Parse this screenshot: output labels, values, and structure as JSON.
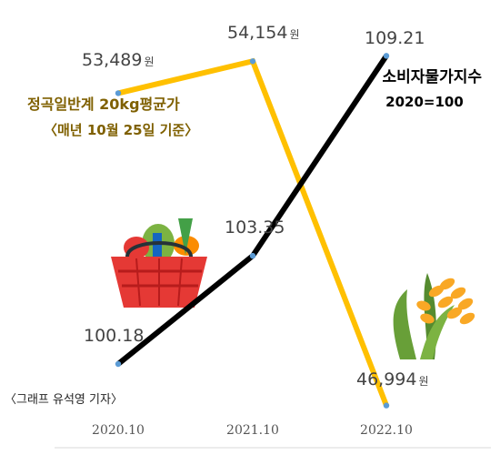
{
  "chart_data": {
    "type": "line",
    "categories": [
      "2020.10",
      "2021.10",
      "2022.10"
    ],
    "series": [
      {
        "name": "정곡일반계 20kg평균가",
        "values": [
          53489,
          54154,
          46994
        ],
        "labels": [
          "53,489",
          "54,154",
          "46,994"
        ],
        "unit": "원",
        "color": "#FFC000"
      },
      {
        "name": "소비자물가지수",
        "values": [
          100.18,
          103.35,
          109.21
        ],
        "labels": [
          "100.18",
          "103.35",
          "109.21"
        ],
        "color": "#000000"
      }
    ],
    "legend": {
      "rice_title": "정곡일반계 20kg평균가",
      "rice_note": "〈매년 10월 25일 기준〉",
      "cpi_title": "소비자물가지수",
      "cpi_note": "2020=100"
    },
    "grid": false
  },
  "credit": "〈그래프 유석영 기자〉",
  "colors": {
    "rice_line": "#FFC000",
    "cpi_line": "#000000",
    "marker": "#5B9BD5",
    "legend_text": "#7F6000"
  }
}
